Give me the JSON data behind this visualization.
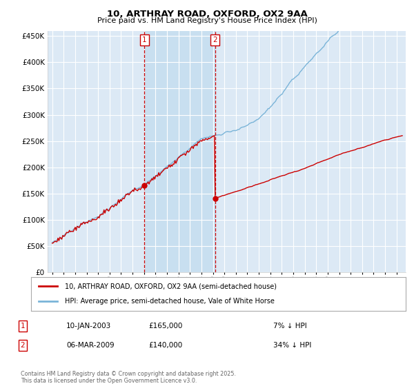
{
  "title": "10, ARTHRAY ROAD, OXFORD, OX2 9AA",
  "subtitle": "Price paid vs. HM Land Registry's House Price Index (HPI)",
  "ylim": [
    0,
    460000
  ],
  "yticks": [
    0,
    50000,
    100000,
    150000,
    200000,
    250000,
    300000,
    350000,
    400000,
    450000
  ],
  "background_color": "#ffffff",
  "plot_bg_color": "#dce9f5",
  "shade_color": "#c8dff0",
  "grid_color": "#ffffff",
  "hpi_color": "#7ab4d8",
  "price_color": "#cc0000",
  "dashed_color": "#cc0000",
  "sale1_year": 2003.04,
  "sale2_year": 2009.18,
  "sale1_price": 165000,
  "sale2_price": 140000,
  "sale1_date": "10-JAN-2003",
  "sale2_date": "06-MAR-2009",
  "sale1_pct": "7%",
  "sale2_pct": "34%",
  "legend_label_price": "10, ARTHRAY ROAD, OXFORD, OX2 9AA (semi-detached house)",
  "legend_label_hpi": "HPI: Average price, semi-detached house, Vale of White Horse",
  "footer": "Contains HM Land Registry data © Crown copyright and database right 2025.\nThis data is licensed under the Open Government Licence v3.0."
}
